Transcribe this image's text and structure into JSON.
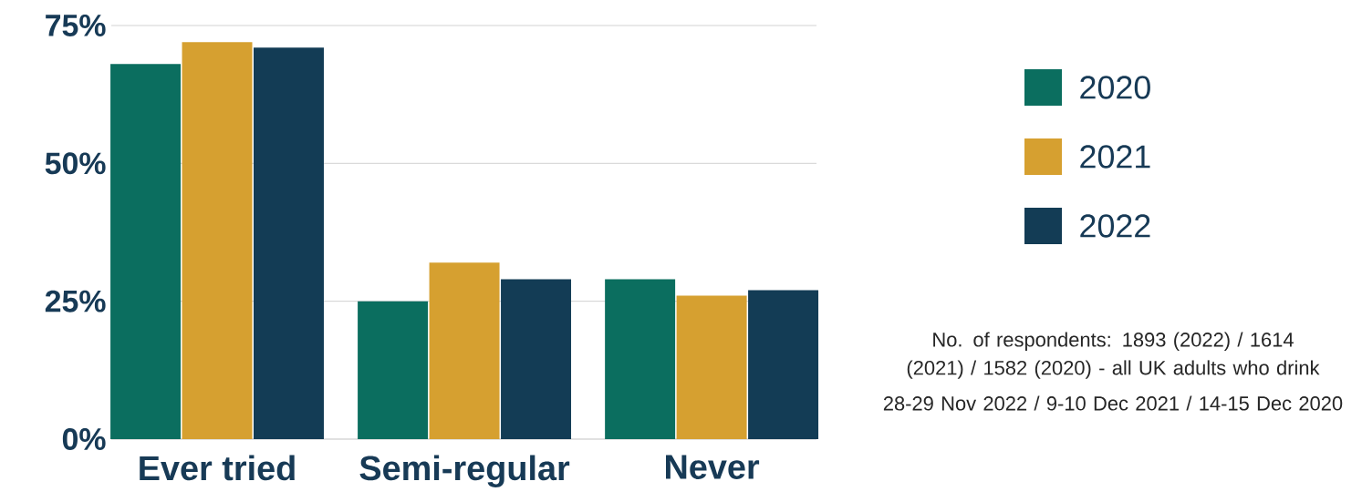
{
  "chart_data": {
    "type": "bar",
    "categories": [
      "Ever tried",
      "Semi-regular",
      "Never"
    ],
    "series": [
      {
        "name": "2020",
        "color": "#0b6e5f",
        "values": [
          68,
          25,
          29
        ]
      },
      {
        "name": "2021",
        "color": "#d6a030",
        "values": [
          72,
          32,
          26
        ]
      },
      {
        "name": "2022",
        "color": "#133c55",
        "values": [
          71,
          29,
          27
        ]
      }
    ],
    "ylim": [
      0,
      75
    ],
    "yticks": [
      {
        "value": 0,
        "label": "0%"
      },
      {
        "value": 25,
        "label": "25%"
      },
      {
        "value": 50,
        "label": "50%"
      },
      {
        "value": 75,
        "label": "75%"
      }
    ],
    "grid": "y",
    "legend": "right",
    "annotations": [
      "No. of respondents: 1893 (2022) / 1614 (2021) / 1582 (2020) - all UK adults who drink",
      "28-29 Nov 2022 / 9-10 Dec 2021 / 14-15 Dec 2020"
    ]
  }
}
